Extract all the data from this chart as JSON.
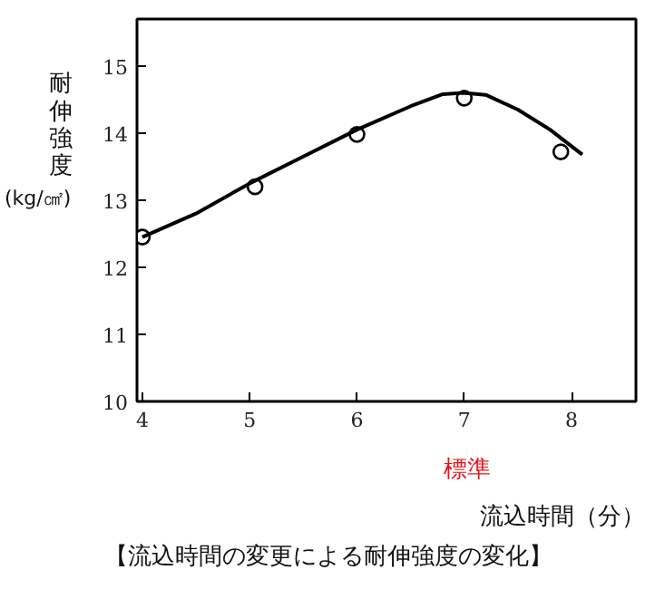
{
  "chart_data": {
    "type": "scatter",
    "title": "【流込時間の変更による耐伸強度の変化】",
    "xlabel": "流込時間（分）",
    "ylabel": "耐伸強度(kg/㎠)",
    "annotations": [
      "標準"
    ],
    "x": [
      4,
      5.05,
      6,
      7,
      7.9
    ],
    "series": [
      {
        "color": "#000000",
        "values": [
          12.45,
          13.2,
          13.98,
          14.52,
          13.72
        ],
        "marker": "circle"
      },
      {
        "type": "line",
        "color": "#000000",
        "x": [
          4,
          4.5,
          5,
          5.5,
          6,
          6.5,
          6.8,
          7,
          7.2,
          7.5,
          7.8,
          8.1
        ],
        "values": [
          12.45,
          12.8,
          13.25,
          13.65,
          14.05,
          14.4,
          14.58,
          14.6,
          14.57,
          14.35,
          14.05,
          13.68
        ],
        "line_style": "solid"
      }
    ],
    "xlim": [
      3.95,
      8.6
    ],
    "ylim": [
      10,
      15.7
    ],
    "xticks": [
      4,
      5,
      6,
      7,
      8
    ],
    "yticks": [
      10,
      11,
      12,
      13,
      14,
      15
    ],
    "grid": false
  }
}
